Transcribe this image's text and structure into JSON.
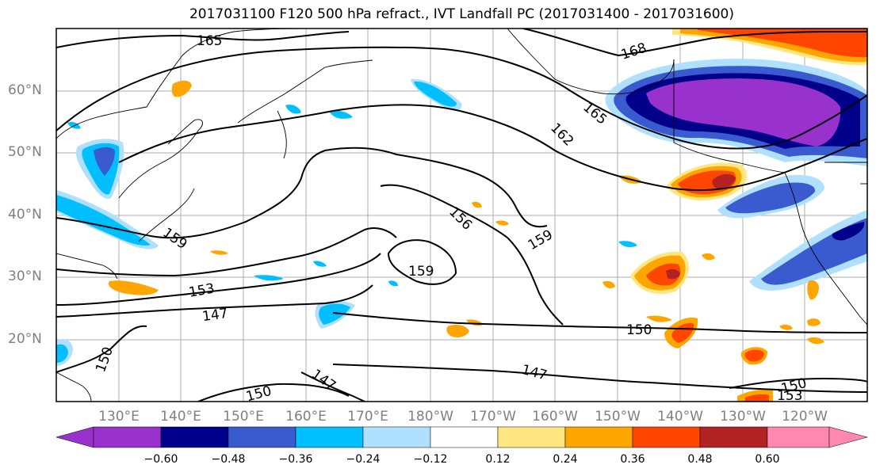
{
  "title": "2017031100 F120 500 hPa refract., IVT Landfall PC (2017031400 - 2017031600)",
  "lat_labels": [
    "60°N",
    "50°N",
    "40°N",
    "30°N",
    "20°N"
  ],
  "lon_labels": [
    "130°E",
    "140°E",
    "150°E",
    "160°E",
    "170°E",
    "180°W",
    "170°W",
    "160°W",
    "150°W",
    "140°W",
    "130°W",
    "120°W"
  ],
  "contour_labels": [
    "165",
    "168",
    "165",
    "162",
    "159",
    "156",
    "159",
    "159",
    "153",
    "147",
    "150",
    "150",
    "150",
    "147",
    "147",
    "150",
    "153",
    "150",
    "153"
  ],
  "colorbar": {
    "ticks": [
      "−0.60",
      "−0.48",
      "−0.36",
      "−0.24",
      "−0.12",
      "0.12",
      "0.24",
      "0.36",
      "0.48",
      "0.60"
    ],
    "colors": [
      "#9932cc",
      "#00008b",
      "#3a5bcf",
      "#00bfff",
      "#b0e0ff",
      "#ffffff",
      "#ffe680",
      "#ffa500",
      "#ff4500",
      "#b22222",
      "#ff88b0"
    ]
  }
}
